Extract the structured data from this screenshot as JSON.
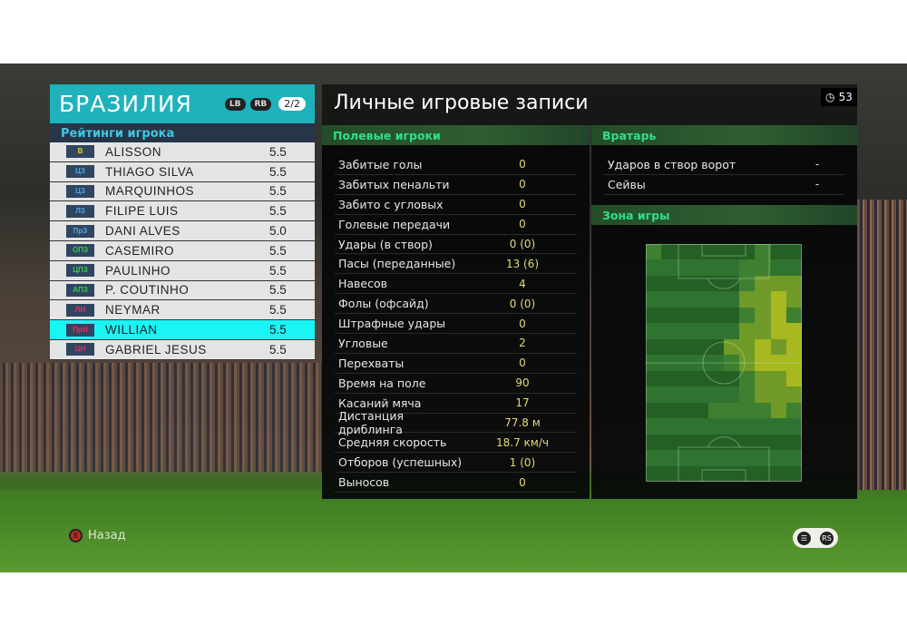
{
  "team": {
    "name": "БРАЗИЛИЯ",
    "lb": "LB",
    "rb": "RB",
    "page": "2/2"
  },
  "ratings_header": "Рейтинги игрока",
  "players": [
    {
      "pos": "В",
      "pos_color": "#e8d020",
      "name": "ALISSON",
      "rating": "5.5"
    },
    {
      "pos": "ЦЗ",
      "pos_color": "#4aa8e8",
      "name": "THIAGO SILVA",
      "rating": "5.5"
    },
    {
      "pos": "ЦЗ",
      "pos_color": "#4aa8e8",
      "name": "MARQUINHOS",
      "rating": "5.5"
    },
    {
      "pos": "ЛЗ",
      "pos_color": "#4aa8e8",
      "name": "FILIPE LUIS",
      "rating": "5.5"
    },
    {
      "pos": "ПрЗ",
      "pos_color": "#4aa8e8",
      "name": "DANI ALVES",
      "rating": "5.0"
    },
    {
      "pos": "ОПЗ",
      "pos_color": "#40c850",
      "name": "CASEMIRO",
      "rating": "5.5"
    },
    {
      "pos": "ЦПЗ",
      "pos_color": "#40c850",
      "name": "PAULINHO",
      "rating": "5.5"
    },
    {
      "pos": "АПЗ",
      "pos_color": "#40c850",
      "name": "P. COUTINHO",
      "rating": "5.5"
    },
    {
      "pos": "ЛН",
      "pos_color": "#e83060",
      "name": "NEYMAR",
      "rating": "5.5"
    },
    {
      "pos": "ПрН",
      "pos_color": "#e83060",
      "name": "WILLIAN",
      "rating": "5.5",
      "selected": true
    },
    {
      "pos": "ЦН",
      "pos_color": "#e83060",
      "name": "GABRIEL JESUS",
      "rating": "5.5"
    }
  ],
  "title": "Личные игровые записи",
  "timer": "53",
  "field_players": {
    "header": "Полевые игроки",
    "stats": [
      {
        "label": "Забитые голы",
        "value": "0"
      },
      {
        "label": "Забитых пенальти",
        "value": "0"
      },
      {
        "label": "Забито с угловых",
        "value": "0"
      },
      {
        "label": "Голевые передачи",
        "value": "0"
      },
      {
        "label": "Удары (в створ)",
        "value": "0 (0)"
      },
      {
        "label": "Пасы (переданные)",
        "value": "13 (6)"
      },
      {
        "label": "Навесов",
        "value": "4"
      },
      {
        "label": "Фолы (офсайд)",
        "value": "0 (0)"
      },
      {
        "label": "Штрафные удары",
        "value": "0"
      },
      {
        "label": "Угловые",
        "value": "2"
      },
      {
        "label": "Перехваты",
        "value": "0"
      },
      {
        "label": "Время на поле",
        "value": "90"
      },
      {
        "label": "Касаний мяча",
        "value": "17"
      },
      {
        "label": "Дистанция дриблинга",
        "value": "77.8 м"
      },
      {
        "label": "Средняя скорость",
        "value": "18.7 км/ч"
      },
      {
        "label": "Отборов (успешных)",
        "value": "1 (0)"
      },
      {
        "label": "Выносов",
        "value": "0"
      }
    ]
  },
  "goalkeeper": {
    "header": "Вратарь",
    "stats": [
      {
        "label": "Ударов в створ ворот",
        "value": "-"
      },
      {
        "label": "Сейвы",
        "value": "-"
      }
    ]
  },
  "zone": {
    "header": "Зона игры",
    "heatmap": [
      [
        1,
        0,
        0,
        0,
        0,
        0,
        0,
        1,
        0,
        0
      ],
      [
        0,
        0,
        0,
        0,
        0,
        0,
        1,
        1,
        0,
        0
      ],
      [
        0,
        0,
        0,
        0,
        0,
        0,
        1,
        2,
        2,
        2
      ],
      [
        0,
        0,
        0,
        0,
        0,
        0,
        2,
        2,
        3,
        2
      ],
      [
        0,
        0,
        0,
        0,
        0,
        0,
        1,
        2,
        3,
        1
      ],
      [
        0,
        0,
        0,
        0,
        0,
        0,
        2,
        2,
        3,
        3
      ],
      [
        0,
        0,
        0,
        0,
        0,
        2,
        2,
        3,
        2,
        3
      ],
      [
        0,
        0,
        0,
        0,
        0,
        1,
        2,
        3,
        3,
        3
      ],
      [
        0,
        0,
        0,
        0,
        0,
        0,
        1,
        2,
        2,
        3
      ],
      [
        0,
        0,
        0,
        0,
        0,
        0,
        1,
        2,
        2,
        2
      ],
      [
        0,
        0,
        0,
        0,
        1,
        1,
        1,
        1,
        2,
        1
      ],
      [
        0,
        0,
        0,
        0,
        0,
        0,
        0,
        0,
        0,
        0
      ],
      [
        0,
        0,
        0,
        0,
        0,
        0,
        0,
        0,
        0,
        0
      ],
      [
        0,
        0,
        0,
        0,
        0,
        0,
        0,
        0,
        0,
        0
      ],
      [
        0,
        0,
        0,
        0,
        0,
        0,
        0,
        0,
        0,
        0
      ]
    ],
    "colors": [
      "#2a6a2a",
      "#3f7f30",
      "#6f9a28",
      "#a8b820",
      "#c8d818"
    ]
  },
  "controls": {
    "back": "Назад",
    "back_btn": "B"
  }
}
